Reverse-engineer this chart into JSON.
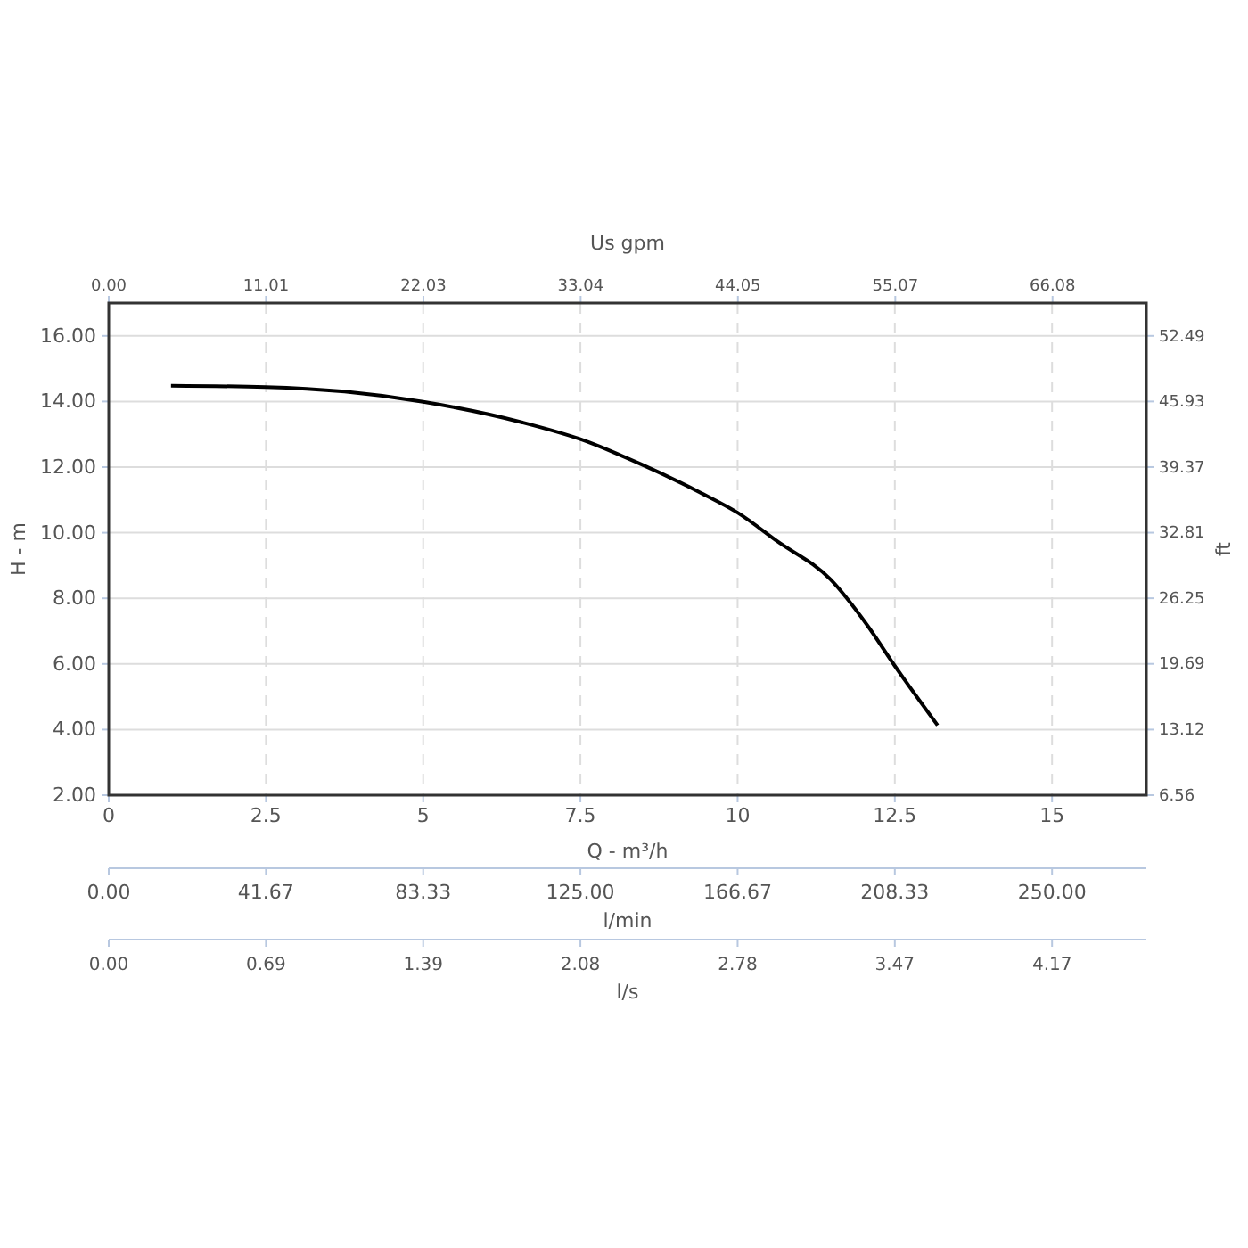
{
  "chart_data": {
    "type": "line",
    "xlabel": "Q - m³/h",
    "ylabel": "H - m",
    "y2label": "ft",
    "x2label": "Us gpm",
    "xlim": [
      0,
      16.5
    ],
    "xticks": [
      0,
      2.5,
      5,
      7.5,
      10,
      12.5,
      15
    ],
    "x2lim": [
      0,
      72.65
    ],
    "x2ticks": [
      {
        "value": 0,
        "label": "0.00"
      },
      {
        "value": 11.01,
        "label": "11.01"
      },
      {
        "value": 22.03,
        "label": "22.03"
      },
      {
        "value": 33.04,
        "label": "33.04"
      },
      {
        "value": 44.05,
        "label": "44.05"
      },
      {
        "value": 55.07,
        "label": "55.07"
      },
      {
        "value": 66.08,
        "label": "66.08"
      }
    ],
    "ylim": [
      2,
      17
    ],
    "yticks": [
      {
        "value": 2,
        "label": "2.00"
      },
      {
        "value": 4,
        "label": "4.00"
      },
      {
        "value": 6,
        "label": "6.00"
      },
      {
        "value": 8,
        "label": "8.00"
      },
      {
        "value": 10,
        "label": "10.00"
      },
      {
        "value": 12,
        "label": "12.00"
      },
      {
        "value": 14,
        "label": "14.00"
      },
      {
        "value": 16,
        "label": "16.00"
      }
    ],
    "y2lim": [
      6.56,
      55.77
    ],
    "y2ticks": [
      {
        "value": 6.56,
        "label": "6.56"
      },
      {
        "value": 13.12,
        "label": "13.12"
      },
      {
        "value": 19.69,
        "label": "19.69"
      },
      {
        "value": 26.25,
        "label": "26.25"
      },
      {
        "value": 32.81,
        "label": "32.81"
      },
      {
        "value": 39.37,
        "label": "39.37"
      },
      {
        "value": 45.93,
        "label": "45.93"
      },
      {
        "value": 52.49,
        "label": "52.49"
      }
    ],
    "grid": true,
    "marker": "none",
    "line_style": "solid",
    "annotations": [
      "0.00",
      "41.67",
      "83.33",
      "125.00",
      "166.67",
      "208.33",
      "250.00",
      "l/min",
      "0.00",
      "0.69",
      "1.39",
      "2.08",
      "2.78",
      "3.47",
      "4.17",
      "l/s"
    ],
    "series": [
      {
        "color": "#000000",
        "x": [
          0.99,
          2.5,
          3.75,
          5,
          6.58,
          7.5,
          8.46,
          9.41,
          10,
          10.63,
          11.48,
          12.05,
          12.5,
          13.18
        ],
        "values": [
          14.48,
          14.44,
          14.3,
          13.99,
          13.36,
          12.85,
          12.09,
          11.22,
          10.61,
          9.74,
          8.57,
          7.21,
          5.94,
          4.13
        ]
      }
    ]
  }
}
